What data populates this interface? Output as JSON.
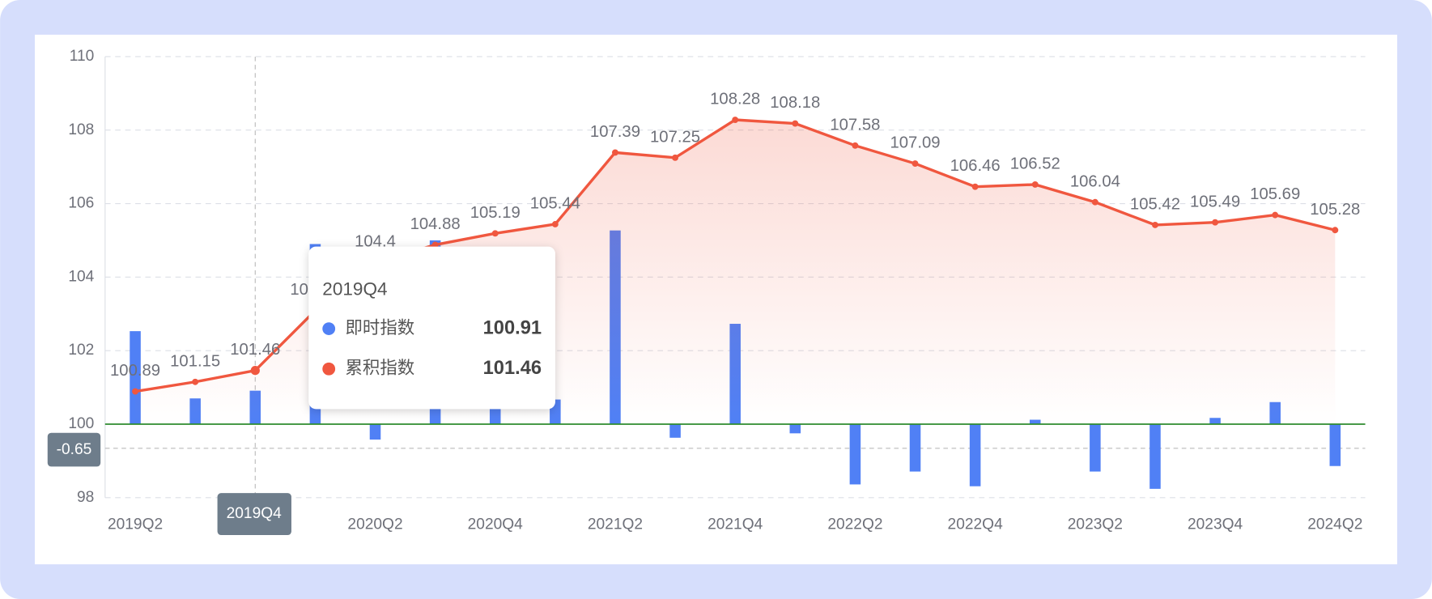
{
  "chart_data": {
    "type": "bar-line",
    "categories": [
      "2019Q2",
      null,
      "2019Q4",
      null,
      "2020Q2",
      null,
      "2020Q4",
      null,
      "2021Q2",
      null,
      "2021Q4",
      null,
      "2022Q2",
      null,
      "2022Q4",
      null,
      "2023Q2",
      null,
      "2023Q4",
      null,
      "2024Q2"
    ],
    "series": [
      {
        "name": "即时指数",
        "type": "bar",
        "color": "#5080f5",
        "values": [
          102.53,
          100.7,
          100.91,
          104.9,
          99.58,
          105.0,
          101.2,
          100.67,
          105.27,
          99.63,
          102.73,
          99.75,
          98.36,
          98.71,
          98.31,
          100.12,
          98.71,
          98.24,
          100.17,
          100.6,
          98.86
        ]
      },
      {
        "name": "累积指数",
        "type": "line",
        "color": "#f0573f",
        "values": [
          100.89,
          101.15,
          101.46,
          103.09,
          104.4,
          104.88,
          105.19,
          105.44,
          107.39,
          107.25,
          108.28,
          108.18,
          107.58,
          107.09,
          106.46,
          106.52,
          106.04,
          105.42,
          105.49,
          105.69,
          105.28
        ]
      }
    ],
    "ylim": [
      98,
      110
    ],
    "yticks": [
      98,
      100,
      102,
      104,
      106,
      108,
      110
    ],
    "grid": true,
    "baseline": 100,
    "y_axis_pointer_label": "-0.65"
  }
}
